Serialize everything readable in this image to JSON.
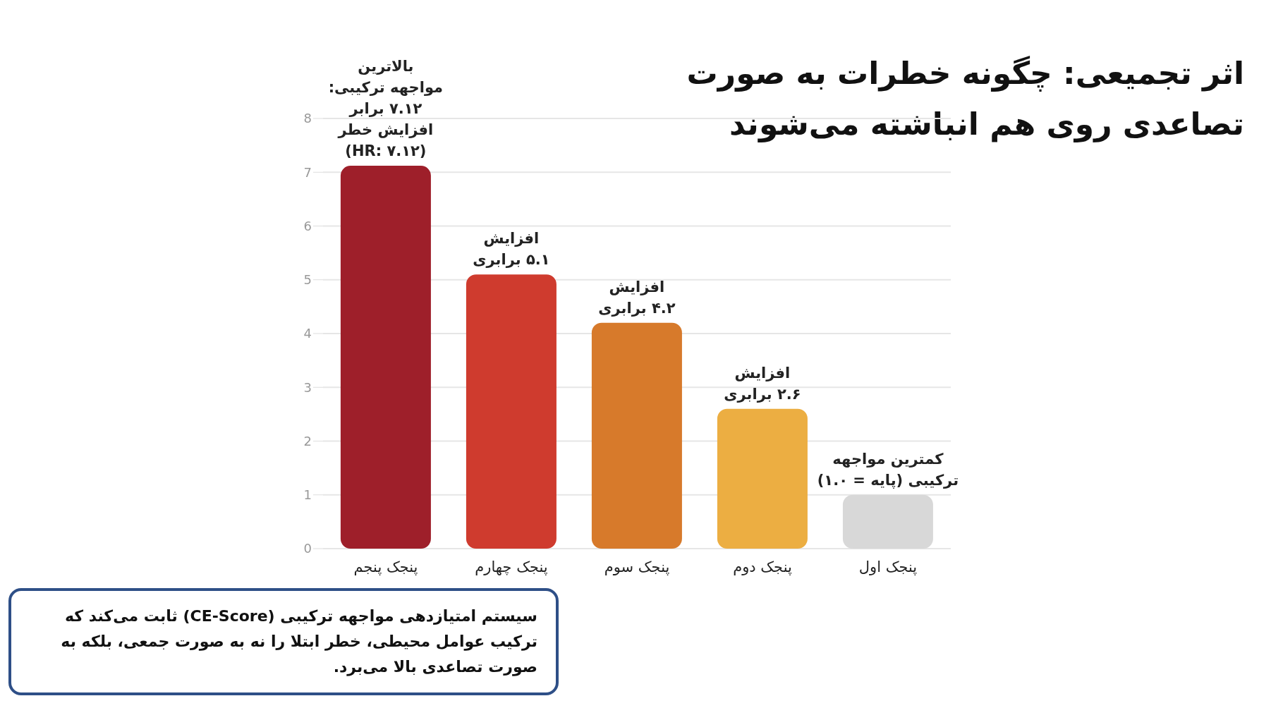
{
  "chart_data": {
    "type": "bar",
    "title": "اثر تجمیعی: چگونه خطرات به صورت تصاعدی روی هم انباشته می‌شوند",
    "categories": [
      "پنجک پنجم",
      "پنجک چهارم",
      "پنجک سوم",
      "پنجک دوم",
      "پنجک اول"
    ],
    "values": [
      7.12,
      5.1,
      4.2,
      2.6,
      1.0
    ],
    "colors": [
      "#9e1f2a",
      "#cf3b2e",
      "#d77a2b",
      "#ecae42",
      "#d8d8d8"
    ],
    "value_labels": [
      "بالاترین\nمواجهه ترکیبی:\n۷.۱۲ برابر\nافزایش خطر\n(HR: ۷.۱۲)",
      "افزایش\n۵.۱ برابری",
      "افزایش\n۴.۲ برابری",
      "افزایش\n۲.۶ برابری",
      "کمترین مواجهه\nترکیبی (پایه = ۱.۰)"
    ],
    "ylim": [
      0,
      8
    ],
    "yticks": [
      0,
      1,
      2,
      3,
      4,
      5,
      6,
      7,
      8
    ],
    "grid": "y",
    "annotations": [
      "سیستم امتیازدهی مواجهه ترکیبی (CE-Score) ثابت می‌کند که ترکیب عوامل محیطی، خطر ابتلا را نه به صورت جمعی، بلکه به صورت تصاعدی بالا می‌برد."
    ]
  }
}
